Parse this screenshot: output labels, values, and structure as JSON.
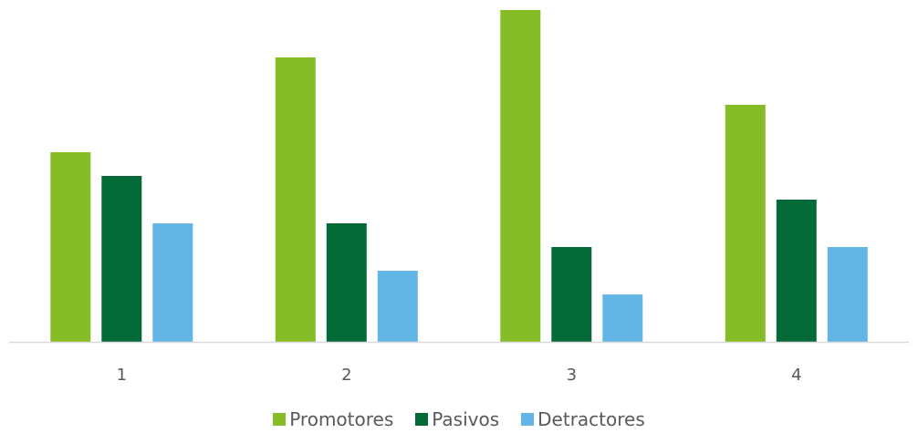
{
  "chart_data": {
    "type": "bar",
    "categories": [
      "1",
      "2",
      "3",
      "4"
    ],
    "series": [
      {
        "name": "Promotores",
        "values": [
          0.4,
          0.6,
          0.7,
          0.5
        ],
        "color": "#86BC25"
      },
      {
        "name": "Pasivos",
        "values": [
          0.35,
          0.25,
          0.2,
          0.3
        ],
        "color": "#046A38"
      },
      {
        "name": "Detractores",
        "values": [
          0.25,
          0.15,
          0.1,
          0.2
        ],
        "color": "#62B5E5"
      }
    ],
    "title": "",
    "xlabel": "",
    "ylabel": "",
    "ylim": [
      0,
      0.7
    ],
    "grid": false,
    "legend_position": "bottom"
  }
}
